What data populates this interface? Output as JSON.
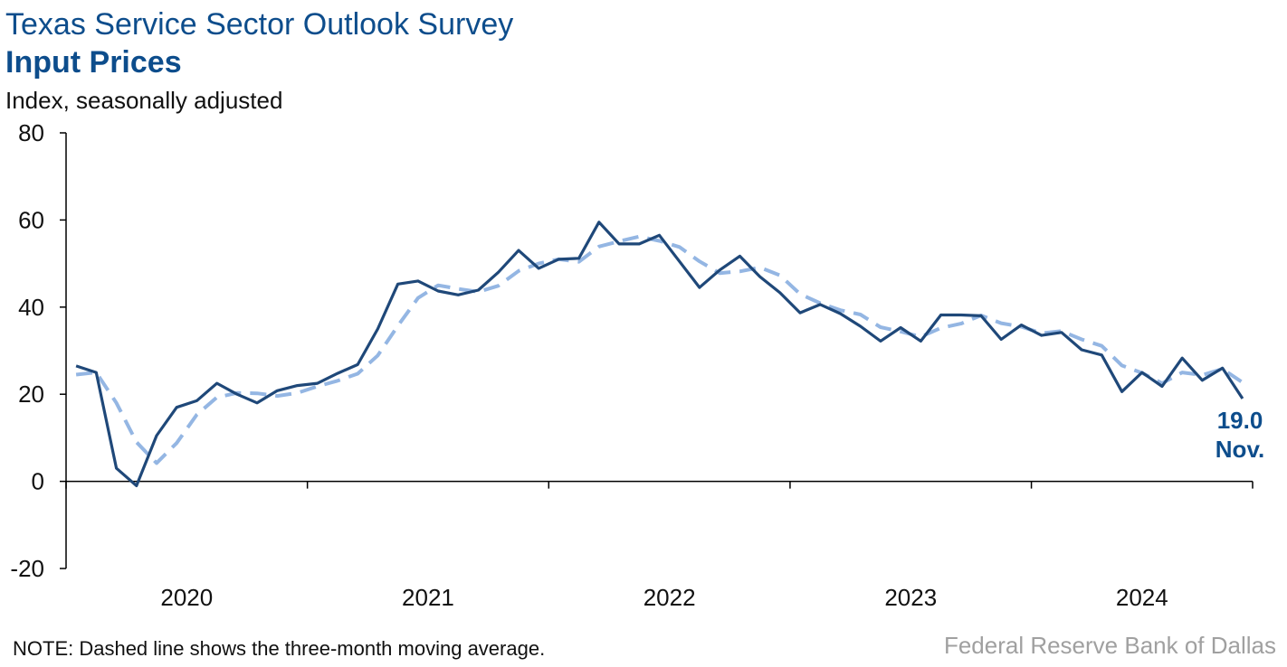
{
  "header": {
    "title": "Texas Service Sector Outlook Survey",
    "subtitle": "Input Prices",
    "units": "Index, seasonally adjusted"
  },
  "footer": {
    "note": "NOTE: Dashed line shows the three-month moving average.",
    "source": "Federal Reserve Bank of Dallas"
  },
  "colors": {
    "index_line": "#1f4879",
    "moving_avg_line": "#94b6e3",
    "title": "#0d4d8c",
    "axis": "#000000"
  },
  "chart_data": {
    "type": "line",
    "title": "Input Prices",
    "ylabel": "Index, seasonally adjusted",
    "ylim": [
      -20,
      80
    ],
    "yticks": [
      -20,
      0,
      20,
      40,
      60,
      80
    ],
    "xticks": [
      "2020",
      "2021",
      "2022",
      "2023",
      "2024"
    ],
    "grid": false,
    "x_start": "2020-01",
    "x_end": "2024-11",
    "x": [
      "2020-01",
      "2020-02",
      "2020-03",
      "2020-04",
      "2020-05",
      "2020-06",
      "2020-07",
      "2020-08",
      "2020-09",
      "2020-10",
      "2020-11",
      "2020-12",
      "2021-01",
      "2021-02",
      "2021-03",
      "2021-04",
      "2021-05",
      "2021-06",
      "2021-07",
      "2021-08",
      "2021-09",
      "2021-10",
      "2021-11",
      "2021-12",
      "2022-01",
      "2022-02",
      "2022-03",
      "2022-04",
      "2022-05",
      "2022-06",
      "2022-07",
      "2022-08",
      "2022-09",
      "2022-10",
      "2022-11",
      "2022-12",
      "2023-01",
      "2023-02",
      "2023-03",
      "2023-04",
      "2023-05",
      "2023-06",
      "2023-07",
      "2023-08",
      "2023-09",
      "2023-10",
      "2023-11",
      "2023-12",
      "2024-01",
      "2024-02",
      "2024-03",
      "2024-04",
      "2024-05",
      "2024-06",
      "2024-07",
      "2024-08",
      "2024-09",
      "2024-10",
      "2024-11"
    ],
    "series": [
      {
        "values": [
          26.5,
          25.0,
          3.0,
          -1.0,
          10.5,
          17.0,
          18.5,
          22.5,
          20.0,
          18.0,
          20.8,
          22.0,
          22.5,
          24.8,
          26.8,
          35.0,
          45.3,
          46.0,
          43.7,
          42.8,
          43.9,
          48.0,
          53.0,
          48.9,
          51.0,
          51.2,
          59.5,
          54.5,
          54.5,
          56.5,
          50.5,
          44.5,
          48.5,
          51.7,
          47.0,
          43.3,
          38.7,
          40.6,
          38.5,
          35.6,
          32.2,
          35.3,
          32.2,
          38.2,
          38.2,
          38.0,
          32.6,
          35.9,
          33.5,
          34.2,
          30.2,
          29.0,
          20.6,
          25.0,
          21.8,
          28.3,
          23.2,
          26.0,
          19.0
        ],
        "style": "solid"
      },
      {
        "values": [
          24.5,
          25.0,
          18.0,
          9.0,
          4.2,
          8.8,
          15.3,
          19.3,
          20.3,
          20.2,
          19.6,
          20.3,
          21.8,
          23.1,
          24.7,
          28.9,
          35.7,
          42.1,
          45.0,
          44.2,
          43.5,
          44.9,
          48.3,
          50.0,
          51.0,
          50.4,
          53.9,
          55.1,
          56.2,
          55.2,
          53.8,
          50.5,
          47.8,
          48.2,
          49.1,
          47.3,
          43.0,
          40.9,
          39.3,
          38.3,
          35.4,
          34.4,
          33.2,
          35.2,
          36.2,
          38.1,
          36.3,
          35.5,
          34.0,
          34.5,
          32.6,
          31.1,
          26.6,
          24.9,
          22.5,
          25.0,
          24.4,
          25.8,
          22.7
        ],
        "style": "dashed"
      }
    ],
    "annotation": {
      "value": "19.0",
      "label": "Nov."
    }
  }
}
